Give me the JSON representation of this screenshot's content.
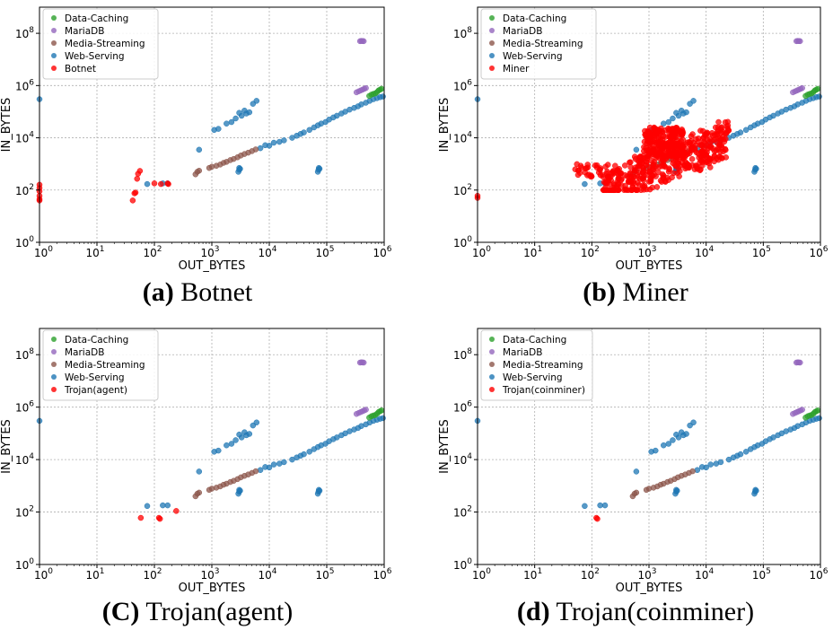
{
  "figure": {
    "colors": {
      "Data-Caching": "#2ca02c",
      "MariaDB": "#9467bd",
      "Media-Streaming": "#8c564b",
      "Web-Serving": "#1f77b4",
      "Malware": "#ff0000"
    },
    "legend_common": [
      "Data-Caching",
      "MariaDB",
      "Media-Streaming",
      "Web-Serving"
    ],
    "x_ticks": [
      "10^0",
      "10^1",
      "10^2",
      "10^3",
      "10^4",
      "10^5",
      "10^6"
    ],
    "y_ticks": [
      "10^0",
      "10^2",
      "10^4",
      "10^6",
      "10^8"
    ]
  },
  "chart_data": [
    {
      "id": "a",
      "type": "scatter",
      "caption_letter": "(a)",
      "caption_text": "Botnet",
      "xlabel": "OUT_BYTES",
      "ylabel": "IN_BYTES",
      "xscale": "log",
      "yscale": "log",
      "xlim": [
        1,
        1000000
      ],
      "ylim": [
        1,
        1000000000
      ],
      "grid": true,
      "legend": "top-left",
      "series": [
        {
          "name": "Botnet",
          "color": "#ff0000",
          "points": [
            [
              1,
              160
            ],
            [
              1,
              120
            ],
            [
              1,
              90
            ],
            [
              1,
              60
            ],
            [
              1,
              45
            ],
            [
              1,
              40
            ],
            [
              42,
              40
            ],
            [
              45,
              75
            ],
            [
              47,
              80
            ],
            [
              50,
              270
            ],
            [
              52,
              420
            ],
            [
              56,
              540
            ],
            [
              100,
              180
            ],
            [
              130,
              170
            ],
            [
              170,
              180
            ],
            [
              175,
              170
            ]
          ]
        }
      ]
    },
    {
      "id": "b",
      "type": "scatter",
      "caption_letter": "(b)",
      "caption_text": "Miner",
      "xlabel": "OUT_BYTES",
      "ylabel": "IN_BYTES",
      "xscale": "log",
      "yscale": "log",
      "xlim": [
        1,
        1000000
      ],
      "ylim": [
        1,
        1000000000
      ],
      "grid": true,
      "legend": "top-left",
      "series": [
        {
          "name": "Miner",
          "color": "#ff0000",
          "points": "generated-cloud"
        }
      ]
    },
    {
      "id": "c",
      "type": "scatter",
      "caption_letter": "(C)",
      "caption_text": "Trojan(agent)",
      "xlabel": "OUT_BYTES",
      "ylabel": "IN_BYTES",
      "xscale": "log",
      "yscale": "log",
      "xlim": [
        1,
        1000000
      ],
      "ylim": [
        1,
        1000000000
      ],
      "grid": true,
      "legend": "top-left",
      "series": [
        {
          "name": "Trojan(agent)",
          "color": "#ff0000",
          "points": [
            [
              58,
              60
            ],
            [
              120,
              60
            ],
            [
              125,
              55
            ],
            [
              240,
              110
            ]
          ]
        }
      ]
    },
    {
      "id": "d",
      "type": "scatter",
      "caption_letter": "(d)",
      "caption_text": "Trojan(coinminer)",
      "xlabel": "OUT_BYTES",
      "ylabel": "IN_BYTES",
      "xscale": "log",
      "yscale": "log",
      "xlim": [
        1,
        1000000
      ],
      "ylim": [
        1,
        1000000000
      ],
      "grid": true,
      "legend": "top-left",
      "series": [
        {
          "name": "Trojan(coinminer)",
          "color": "#ff0000",
          "points": [
            [
              120,
              60
            ],
            [
              125,
              55
            ]
          ]
        }
      ]
    }
  ],
  "background_series": {
    "Data-Caching": [
      [
        550000,
        400000
      ],
      [
        600000,
        450000
      ],
      [
        650000,
        480000
      ],
      [
        700000,
        500000
      ],
      [
        750000,
        560000
      ],
      [
        800000,
        650000
      ],
      [
        850000,
        700000
      ],
      [
        900000,
        750000
      ]
    ],
    "MariaDB": [
      [
        380000,
        50000000
      ],
      [
        400000,
        51000000
      ],
      [
        420000,
        50500000
      ],
      [
        440000,
        50000000
      ],
      [
        330000,
        550000
      ],
      [
        360000,
        600000
      ],
      [
        390000,
        650000
      ],
      [
        420000,
        700000
      ],
      [
        450000,
        750000
      ],
      [
        480000,
        800000
      ]
    ],
    "Media-Streaming": [
      [
        520,
        400
      ],
      [
        560,
        500
      ],
      [
        600,
        550
      ],
      [
        900,
        700
      ],
      [
        1000,
        780
      ],
      [
        1200,
        850
      ],
      [
        1400,
        950
      ],
      [
        1600,
        1100
      ],
      [
        1800,
        1200
      ],
      [
        2100,
        1400
      ],
      [
        2400,
        1550
      ],
      [
        2800,
        1800
      ],
      [
        3200,
        2100
      ],
      [
        3700,
        2400
      ],
      [
        4300,
        2700
      ],
      [
        5000,
        3100
      ],
      [
        5800,
        3600
      ]
    ],
    "Web-Serving": [
      [
        1,
        300000
      ],
      [
        75,
        170
      ],
      [
        140,
        180
      ],
      [
        170,
        180
      ],
      [
        600,
        3500
      ],
      [
        1100,
        20000
      ],
      [
        1300,
        22000
      ],
      [
        1800,
        35000
      ],
      [
        2200,
        40000
      ],
      [
        2600,
        55000
      ],
      [
        3000,
        90000
      ],
      [
        3300,
        70000
      ],
      [
        3700,
        110000
      ],
      [
        4000,
        85000
      ],
      [
        4500,
        95000
      ],
      [
        5200,
        200000
      ],
      [
        6000,
        260000
      ],
      [
        2900,
        500
      ],
      [
        3000,
        600
      ],
      [
        3000,
        700
      ],
      [
        3100,
        650
      ],
      [
        7000,
        4000
      ],
      [
        8500,
        5200
      ],
      [
        10000,
        5000
      ],
      [
        12000,
        6500
      ],
      [
        15000,
        7000
      ],
      [
        18000,
        8000
      ],
      [
        25000,
        10000
      ],
      [
        30000,
        12000
      ],
      [
        35000,
        14000
      ],
      [
        40000,
        16000
      ],
      [
        50000,
        20000
      ],
      [
        60000,
        25000
      ],
      [
        70000,
        30000
      ],
      [
        80000,
        35000
      ],
      [
        95000,
        40000
      ],
      [
        110000,
        50000
      ],
      [
        130000,
        60000
      ],
      [
        150000,
        70000
      ],
      [
        180000,
        85000
      ],
      [
        210000,
        100000
      ],
      [
        250000,
        120000
      ],
      [
        300000,
        140000
      ],
      [
        350000,
        160000
      ],
      [
        400000,
        190000
      ],
      [
        480000,
        220000
      ],
      [
        560000,
        260000
      ],
      [
        650000,
        300000
      ],
      [
        750000,
        330000
      ],
      [
        850000,
        360000
      ],
      [
        950000,
        380000
      ],
      [
        70000,
        500
      ],
      [
        72000,
        600
      ],
      [
        73000,
        700
      ],
      [
        75000,
        650
      ]
    ]
  }
}
